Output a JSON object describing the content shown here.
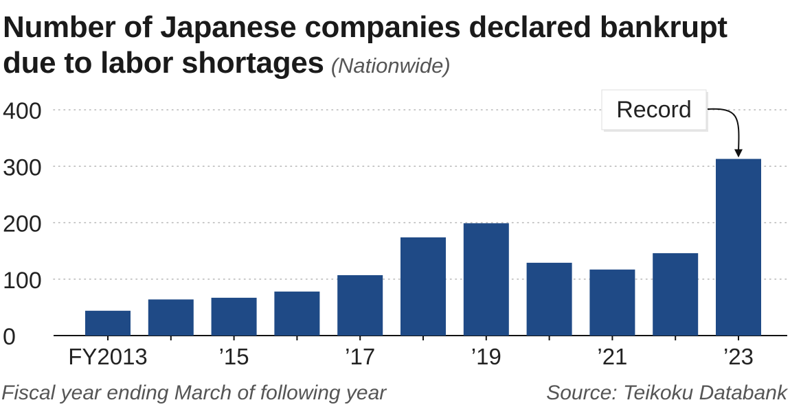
{
  "chart_data": {
    "type": "bar",
    "title_line1": "Number of Japanese companies declared bankrupt",
    "title_line2": "due to labor shortages",
    "subtitle": "(Nationwide)",
    "categories": [
      "FY2013",
      "'14",
      "'15",
      "'16",
      "'17",
      "'18",
      "'19",
      "'20",
      "'21",
      "'22",
      "'23"
    ],
    "x_tick_labels": [
      "FY2013",
      "",
      "’15",
      "",
      "’17",
      "",
      "’19",
      "",
      "’21",
      "",
      "’23"
    ],
    "values": [
      44,
      64,
      67,
      78,
      107,
      174,
      199,
      129,
      117,
      146,
      313
    ],
    "y_ticks": [
      0,
      100,
      200,
      300,
      400
    ],
    "ylim": [
      0,
      420
    ],
    "grid": "dotted horizontal",
    "bar_color": "#1f4a86",
    "annotation": {
      "text": "Record",
      "target_category": "'23"
    },
    "note": "Fiscal year ending March of following year",
    "source": "Source: Teikoku Databank"
  }
}
